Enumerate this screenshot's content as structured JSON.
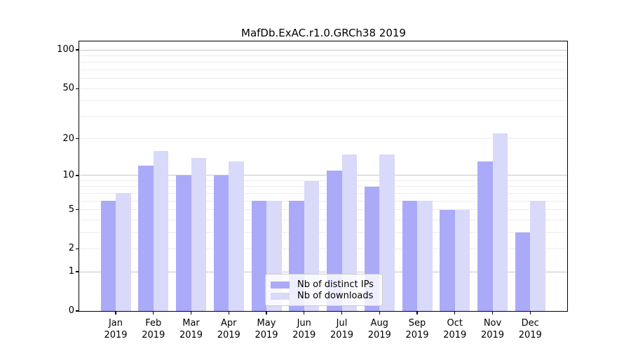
{
  "chart_data": {
    "type": "bar",
    "title": "MafDb.ExAC.r1.0.GRCh38 2019",
    "xlabel": "",
    "ylabel": "",
    "year_label": "2019",
    "categories": [
      "Jan",
      "Feb",
      "Mar",
      "Apr",
      "May",
      "Jun",
      "Jul",
      "Aug",
      "Sep",
      "Oct",
      "Nov",
      "Dec"
    ],
    "series": [
      {
        "name": "Nb of distinct IPs",
        "color": "#aaaaf9",
        "values": [
          6,
          12,
          10,
          10,
          6,
          6,
          11,
          8,
          6,
          5,
          13,
          3
        ]
      },
      {
        "name": "Nb of downloads",
        "color": "#d9d9f9",
        "values": [
          7,
          16,
          14,
          13,
          6,
          9,
          15,
          15,
          6,
          5,
          22,
          6
        ]
      }
    ],
    "yscale": "log1p",
    "ylim": [
      0,
      115
    ],
    "ytick_labels": [
      100,
      50,
      20,
      10,
      5,
      2,
      1,
      0
    ],
    "decade_gridlines": [
      1,
      10,
      100
    ],
    "minor_gridlines": [
      2,
      3,
      4,
      5,
      6,
      7,
      8,
      9,
      20,
      30,
      40,
      50,
      60,
      70,
      80,
      90
    ],
    "grid": true,
    "legend_position": "lower center"
  }
}
